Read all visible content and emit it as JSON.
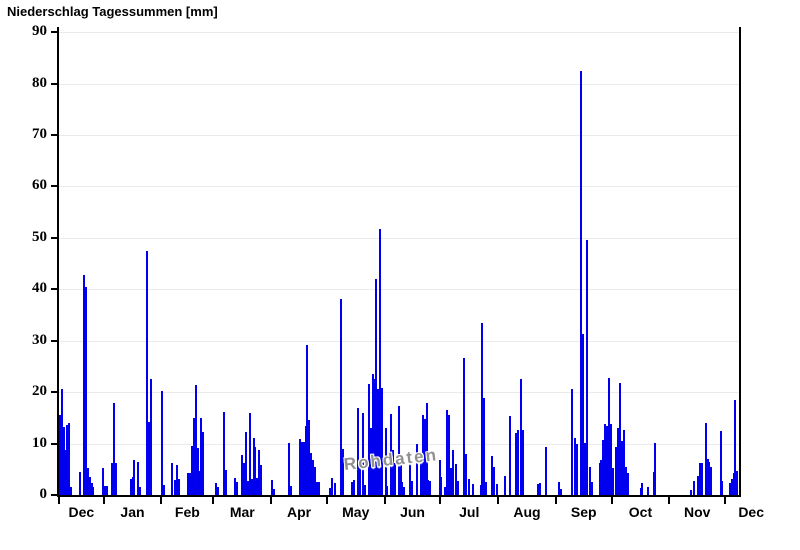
{
  "page": {
    "background": "#ffffff"
  },
  "chart_data": {
    "type": "bar",
    "title": "Niederschlag Tagessummen [mm]",
    "xlabel": "",
    "ylabel": "",
    "unit": "mm",
    "watermark": "Rohdaten",
    "bar_color": "#0000ee",
    "grid_color": "#ebebeb",
    "axis_color": "#000000",
    "grid": true,
    "legend": false,
    "ylim": [
      0,
      91
    ],
    "y_ticks": [
      0,
      10,
      20,
      30,
      40,
      50,
      60,
      70,
      80,
      90
    ],
    "x_tick_month_labels": [
      "Dec",
      "Jan",
      "Feb",
      "Mar",
      "Apr",
      "May",
      "Jun",
      "Jul",
      "Aug",
      "Sep",
      "Oct",
      "Nov",
      "Dec"
    ],
    "n_days": 366,
    "month_boundary_days": [
      24,
      55,
      83,
      114,
      144,
      175,
      205,
      236,
      267,
      297,
      328,
      358
    ],
    "points_format": "[day_index, daily_precip_mm] — day 0 is first day shown (early Dec); days not listed are 0 mm",
    "points": [
      [
        0,
        15.5
      ],
      [
        1,
        20.7
      ],
      [
        2,
        13.3
      ],
      [
        3,
        8.7
      ],
      [
        4,
        13.6
      ],
      [
        5,
        14.0
      ],
      [
        6,
        1.6
      ],
      [
        11,
        4.5
      ],
      [
        13,
        42.8
      ],
      [
        14,
        40.5
      ],
      [
        15,
        5.2
      ],
      [
        16,
        3.5
      ],
      [
        17,
        2.3
      ],
      [
        18,
        1.5
      ],
      [
        23,
        5.2
      ],
      [
        24,
        1.8
      ],
      [
        25,
        1.7
      ],
      [
        28,
        6.3
      ],
      [
        29,
        17.9
      ],
      [
        30,
        6.2
      ],
      [
        38,
        3.1
      ],
      [
        39,
        3.6
      ],
      [
        40,
        6.8
      ],
      [
        42,
        6.5
      ],
      [
        43,
        1.5
      ],
      [
        47,
        47.5
      ],
      [
        48,
        14.2
      ],
      [
        49,
        22.5
      ],
      [
        55,
        20.2
      ],
      [
        56,
        1.9
      ],
      [
        60,
        6.3
      ],
      [
        62,
        2.9
      ],
      [
        63,
        5.8
      ],
      [
        64,
        3.2
      ],
      [
        69,
        4.3
      ],
      [
        70,
        4.3
      ],
      [
        71,
        9.5
      ],
      [
        72,
        15.0
      ],
      [
        73,
        21.4
      ],
      [
        74,
        9.1
      ],
      [
        75,
        4.6
      ],
      [
        76,
        14.9
      ],
      [
        77,
        12.3
      ],
      [
        84,
        2.3
      ],
      [
        85,
        1.6
      ],
      [
        88,
        16.2
      ],
      [
        89,
        4.9
      ],
      [
        94,
        3.3
      ],
      [
        95,
        2.5
      ],
      [
        98,
        7.8
      ],
      [
        99,
        6.2
      ],
      [
        100,
        12.3
      ],
      [
        101,
        2.7
      ],
      [
        102,
        15.9
      ],
      [
        103,
        3.2
      ],
      [
        104,
        11.0
      ],
      [
        105,
        9.3
      ],
      [
        106,
        3.3
      ],
      [
        107,
        8.7
      ],
      [
        108,
        5.8
      ],
      [
        114,
        3.0
      ],
      [
        115,
        1.2
      ],
      [
        123,
        10.2
      ],
      [
        124,
        1.8
      ],
      [
        129,
        10.8
      ],
      [
        130,
        10.3
      ],
      [
        131,
        10.3
      ],
      [
        132,
        13.5
      ],
      [
        133,
        29.2
      ],
      [
        134,
        14.6
      ],
      [
        135,
        8.2
      ],
      [
        136,
        6.8
      ],
      [
        137,
        5.5
      ],
      [
        138,
        2.6
      ],
      [
        139,
        2.6
      ],
      [
        145,
        1.4
      ],
      [
        146,
        3.3
      ],
      [
        148,
        2.3
      ],
      [
        151,
        38.1
      ],
      [
        152,
        8.9
      ],
      [
        157,
        2.5
      ],
      [
        158,
        3.0
      ],
      [
        160,
        16.9
      ],
      [
        161,
        6.0
      ],
      [
        163,
        15.9
      ],
      [
        164,
        2.0
      ],
      [
        166,
        21.5
      ],
      [
        167,
        13.0
      ],
      [
        168,
        23.5
      ],
      [
        169,
        22.6
      ],
      [
        170,
        42.0
      ],
      [
        171,
        20.6
      ],
      [
        172,
        51.8
      ],
      [
        173,
        20.9
      ],
      [
        175,
        13.0
      ],
      [
        176,
        1.8
      ],
      [
        178,
        15.7
      ],
      [
        179,
        8.7
      ],
      [
        180,
        6.2
      ],
      [
        182,
        17.4
      ],
      [
        183,
        6.8
      ],
      [
        184,
        2.5
      ],
      [
        185,
        1.5
      ],
      [
        188,
        6.0
      ],
      [
        189,
        2.8
      ],
      [
        192,
        10.0
      ],
      [
        194,
        7.3
      ],
      [
        195,
        15.6
      ],
      [
        196,
        14.8
      ],
      [
        197,
        17.8
      ],
      [
        198,
        3.0
      ],
      [
        199,
        2.8
      ],
      [
        204,
        6.9
      ],
      [
        205,
        3.5
      ],
      [
        207,
        1.5
      ],
      [
        208,
        16.5
      ],
      [
        209,
        15.6
      ],
      [
        210,
        5.2
      ],
      [
        211,
        8.7
      ],
      [
        213,
        6.0
      ],
      [
        214,
        2.7
      ],
      [
        217,
        26.6
      ],
      [
        218,
        8.0
      ],
      [
        220,
        3.2
      ],
      [
        222,
        2.2
      ],
      [
        226,
        2.0
      ],
      [
        227,
        33.4
      ],
      [
        228,
        18.8
      ],
      [
        229,
        2.5
      ],
      [
        232,
        7.6
      ],
      [
        233,
        5.5
      ],
      [
        235,
        2.2
      ],
      [
        239,
        3.7
      ],
      [
        242,
        15.4
      ],
      [
        245,
        12.1
      ],
      [
        246,
        12.6
      ],
      [
        248,
        22.5
      ],
      [
        249,
        12.6
      ],
      [
        257,
        2.2
      ],
      [
        258,
        2.3
      ],
      [
        261,
        9.4
      ],
      [
        268,
        2.6
      ],
      [
        269,
        1.2
      ],
      [
        275,
        20.7
      ],
      [
        277,
        11.0
      ],
      [
        278,
        9.9
      ],
      [
        280,
        82.4
      ],
      [
        281,
        31.4
      ],
      [
        282,
        10.2
      ],
      [
        283,
        49.6
      ],
      [
        285,
        5.5
      ],
      [
        286,
        2.5
      ],
      [
        290,
        6.3
      ],
      [
        291,
        6.9
      ],
      [
        292,
        10.7
      ],
      [
        293,
        13.9
      ],
      [
        294,
        13.5
      ],
      [
        295,
        22.7
      ],
      [
        296,
        13.8
      ],
      [
        297,
        5.2
      ],
      [
        299,
        9.3
      ],
      [
        300,
        13.0
      ],
      [
        301,
        21.8
      ],
      [
        302,
        10.6
      ],
      [
        303,
        12.6
      ],
      [
        304,
        5.4
      ],
      [
        305,
        4.3
      ],
      [
        312,
        1.3
      ],
      [
        313,
        2.3
      ],
      [
        316,
        1.5
      ],
      [
        319,
        4.5
      ],
      [
        320,
        10.2
      ],
      [
        339,
        1.0
      ],
      [
        341,
        2.7
      ],
      [
        343,
        3.7
      ],
      [
        344,
        6.3
      ],
      [
        345,
        6.3
      ],
      [
        347,
        14.1
      ],
      [
        348,
        7.1
      ],
      [
        349,
        6.5
      ],
      [
        350,
        5.4
      ],
      [
        355,
        12.5
      ],
      [
        356,
        2.8
      ],
      [
        360,
        2.3
      ],
      [
        361,
        3.2
      ],
      [
        362,
        4.2
      ],
      [
        363,
        18.5
      ],
      [
        364,
        4.7
      ]
    ]
  }
}
